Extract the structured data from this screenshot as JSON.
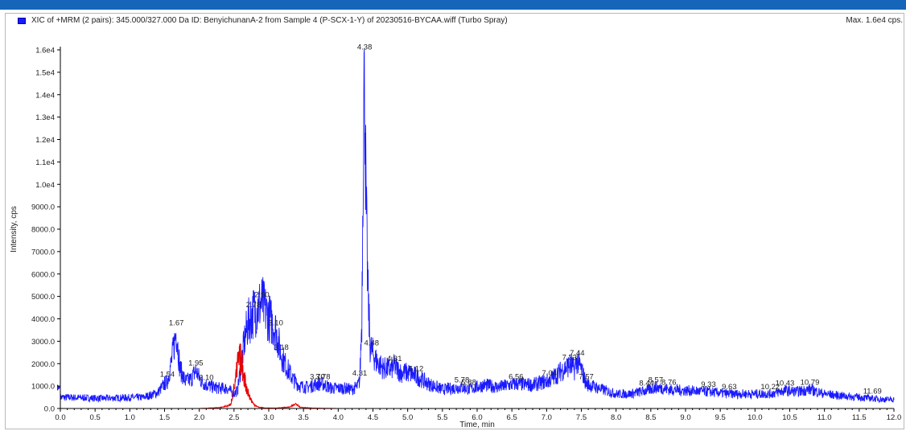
{
  "header": {
    "title": "XIC of +MRM (2 pairs): 345.000/327.000 Da ID: BenyichunanA-2 from Sample 4 (P-SCX-1-Y) of 20230516-BYCAA.wiff (Turbo Spray)",
    "max_label": "Max. 1.6e4 cps."
  },
  "colors": {
    "accent_bar": "#1565b8",
    "series_blue": "#1a1aff",
    "series_red": "#e60000",
    "axis": "#000000"
  },
  "icons": {
    "legend": "legend-swatch-icon",
    "axis_marker": "triangle-right-icon"
  },
  "chart_data": {
    "type": "line",
    "title": "",
    "xlabel": "Time, min",
    "ylabel": "Intensity, cps",
    "xlim": [
      0,
      12
    ],
    "ylim": [
      0,
      16000
    ],
    "grid": false,
    "legend": "top-left",
    "x_ticks": [
      "0.0",
      "0.5",
      "1.0",
      "1.5",
      "2.0",
      "2.5",
      "3.0",
      "3.5",
      "4.0",
      "4.5",
      "5.0",
      "5.5",
      "6.0",
      "6.5",
      "7.0",
      "7.5",
      "8.0",
      "8.5",
      "9.0",
      "9.5",
      "10.0",
      "10.5",
      "11.0",
      "11.5",
      "12.0"
    ],
    "y_ticks": [
      {
        "value": 0,
        "label": "0.0"
      },
      {
        "value": 1000,
        "label": "1000.0"
      },
      {
        "value": 2000,
        "label": "2000.0"
      },
      {
        "value": 3000,
        "label": "3000.0"
      },
      {
        "value": 4000,
        "label": "4000.0"
      },
      {
        "value": 5000,
        "label": "5000.0"
      },
      {
        "value": 6000,
        "label": "6000.0"
      },
      {
        "value": 7000,
        "label": "7000.0"
      },
      {
        "value": 8000,
        "label": "8000.0"
      },
      {
        "value": 9000,
        "label": "9000.0"
      },
      {
        "value": 10000,
        "label": "1.0e4"
      },
      {
        "value": 11000,
        "label": "1.1e4"
      },
      {
        "value": 12000,
        "label": "1.2e4"
      },
      {
        "value": 13000,
        "label": "1.3e4"
      },
      {
        "value": 14000,
        "label": "1.4e4"
      },
      {
        "value": 15000,
        "label": "1.5e4"
      },
      {
        "value": 16000,
        "label": "1.6e4"
      }
    ],
    "series": [
      {
        "color": "#1a1aff",
        "x": [
          0.0,
          0.3,
          0.6,
          0.9,
          1.2,
          1.4,
          1.5,
          1.54,
          1.6,
          1.67,
          1.72,
          1.8,
          1.88,
          1.95,
          2.02,
          2.1,
          2.2,
          2.3,
          2.4,
          2.5,
          2.55,
          2.6,
          2.65,
          2.7,
          2.78,
          2.84,
          2.9,
          2.96,
          3.0,
          3.05,
          3.1,
          3.18,
          3.25,
          3.35,
          3.45,
          3.55,
          3.7,
          3.78,
          3.9,
          4.1,
          4.2,
          4.28,
          4.31,
          4.34,
          4.36,
          4.38,
          4.4,
          4.43,
          4.46,
          4.48,
          4.55,
          4.65,
          4.75,
          4.81,
          4.9,
          5.0,
          5.12,
          5.3,
          5.5,
          5.78,
          5.88,
          6.1,
          6.3,
          6.56,
          6.8,
          7.04,
          7.2,
          7.33,
          7.4,
          7.44,
          7.5,
          7.57,
          7.8,
          8.0,
          8.2,
          8.44,
          8.57,
          8.76,
          9.0,
          9.33,
          9.63,
          10.0,
          10.22,
          10.43,
          10.6,
          10.79,
          11.0,
          11.3,
          11.5,
          11.69,
          11.85,
          12.0
        ],
        "values": [
          500,
          480,
          450,
          480,
          500,
          700,
          1100,
          1200,
          2100,
          3500,
          1800,
          1200,
          1300,
          1700,
          1250,
          1050,
          950,
          900,
          900,
          650,
          800,
          1900,
          3000,
          3800,
          4300,
          4500,
          4750,
          4300,
          4100,
          3800,
          3500,
          2400,
          1900,
          1300,
          1000,
          950,
          1100,
          1100,
          900,
          900,
          850,
          1000,
          1250,
          4000,
          12000,
          15800,
          9000,
          5000,
          2800,
          2600,
          2100,
          1800,
          1750,
          1900,
          1600,
          1600,
          1450,
          1100,
          850,
          950,
          850,
          1050,
          950,
          1100,
          1050,
          1250,
          1650,
          1950,
          1750,
          2150,
          1750,
          1100,
          850,
          650,
          650,
          800,
          950,
          850,
          800,
          750,
          650,
          650,
          650,
          800,
          750,
          850,
          650,
          550,
          500,
          450,
          400,
          400
        ]
      },
      {
        "color": "#e60000",
        "x": [
          0.0,
          1.0,
          2.0,
          2.3,
          2.45,
          2.52,
          2.56,
          2.6,
          2.63,
          2.67,
          2.72,
          2.78,
          2.85,
          2.95,
          3.1,
          3.3,
          3.4,
          3.45,
          3.6,
          4.0,
          6.0,
          8.0,
          10.0,
          12.0
        ],
        "values": [
          0,
          0,
          0,
          40,
          150,
          1200,
          2100,
          2200,
          1700,
          1050,
          550,
          200,
          60,
          20,
          20,
          60,
          220,
          60,
          20,
          0,
          0,
          0,
          0,
          0
        ],
        "shade_zero": true
      }
    ],
    "peak_labels": [
      {
        "label": "1.54",
        "x": 1.54,
        "y": 1200
      },
      {
        "label": "1.67",
        "x": 1.67,
        "y": 3500
      },
      {
        "label": "1.95",
        "x": 1.95,
        "y": 1700
      },
      {
        "label": "2.10",
        "x": 2.1,
        "y": 1050
      },
      {
        "label": "2.78",
        "x": 2.78,
        "y": 4300
      },
      {
        "label": "2.90",
        "x": 2.9,
        "y": 4750
      },
      {
        "label": "3.10",
        "x": 3.1,
        "y": 3500
      },
      {
        "label": "3.18",
        "x": 3.18,
        "y": 2400
      },
      {
        "label": "3.70",
        "x": 3.7,
        "y": 1100
      },
      {
        "label": "3.78",
        "x": 3.78,
        "y": 1100
      },
      {
        "label": "4.31",
        "x": 4.31,
        "y": 1250
      },
      {
        "label": "4.38",
        "x": 4.38,
        "y": 15800
      },
      {
        "label": "4.48",
        "x": 4.48,
        "y": 2600
      },
      {
        "label": "4.81",
        "x": 4.81,
        "y": 1900
      },
      {
        "label": "5.12",
        "x": 5.12,
        "y": 1450
      },
      {
        "label": "5.78",
        "x": 5.78,
        "y": 950
      },
      {
        "label": "5.88",
        "x": 5.88,
        "y": 850
      },
      {
        "label": "6.56",
        "x": 6.56,
        "y": 1100
      },
      {
        "label": "7.04",
        "x": 7.04,
        "y": 1250
      },
      {
        "label": "7.33",
        "x": 7.33,
        "y": 1950
      },
      {
        "label": "7.44",
        "x": 7.44,
        "y": 2150
      },
      {
        "label": "7.57",
        "x": 7.57,
        "y": 1100
      },
      {
        "label": "8.44",
        "x": 8.44,
        "y": 800
      },
      {
        "label": "8.57",
        "x": 8.57,
        "y": 950
      },
      {
        "label": "8.76",
        "x": 8.76,
        "y": 850
      },
      {
        "label": "9.33",
        "x": 9.33,
        "y": 750
      },
      {
        "label": "9.63",
        "x": 9.63,
        "y": 650
      },
      {
        "label": "10.22",
        "x": 10.22,
        "y": 650
      },
      {
        "label": "10.43",
        "x": 10.43,
        "y": 800
      },
      {
        "label": "10.79",
        "x": 10.79,
        "y": 850
      },
      {
        "label": "11.69",
        "x": 11.69,
        "y": 450
      }
    ]
  }
}
